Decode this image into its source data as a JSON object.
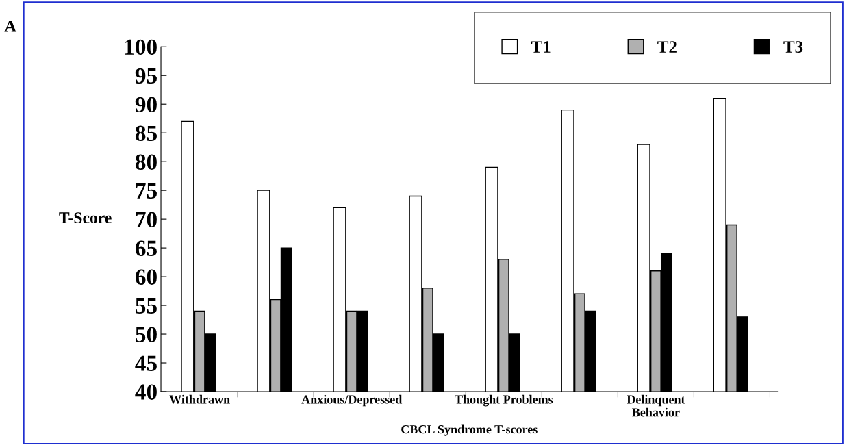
{
  "chart_data": {
    "type": "bar",
    "categories": [
      "Withdrawn",
      null,
      "Anxious/Depressed",
      null,
      "Thought Problems",
      null,
      "Delinquent\nBehavior",
      null
    ],
    "series": [
      {
        "name": "T1",
        "color": "#ffffff",
        "values": [
          87,
          75,
          72,
          74,
          79,
          89,
          83,
          91
        ]
      },
      {
        "name": "T2",
        "color": "#b0b0b0",
        "values": [
          54,
          56,
          54,
          58,
          63,
          57,
          61,
          69
        ]
      },
      {
        "name": "T3",
        "color": "#000000",
        "values": [
          50,
          65,
          54,
          50,
          50,
          54,
          64,
          53
        ]
      }
    ],
    "ylabel": "T-Score",
    "xlabel": "CBCL Syndrome T-scores",
    "ylim": [
      40,
      100
    ],
    "yticks": [
      40,
      45,
      50,
      55,
      60,
      65,
      70,
      75,
      80,
      85,
      90,
      95,
      100
    ],
    "grid": false,
    "legend": "top right",
    "annotations": [
      "A"
    ]
  }
}
